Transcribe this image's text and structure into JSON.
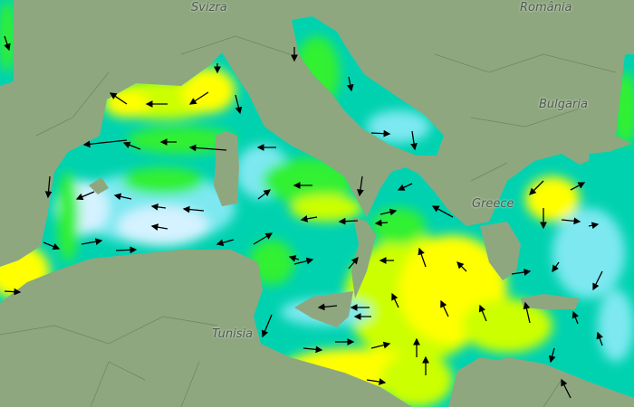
{
  "map": {
    "labels": {
      "switzerland": "Svizra",
      "romania": "România",
      "bulgaria": "Bulgaria",
      "greece": "Greece",
      "tunisia": "Tunisia"
    },
    "colors": {
      "land": "#8fa77f",
      "very_high": "#ffff00",
      "high": "#ccff00",
      "medium": "#33f033",
      "low": "#00d2b0",
      "very_low": "#7de8f0",
      "minimal": "#d4f2ff",
      "arrow": "#000000"
    }
  }
}
